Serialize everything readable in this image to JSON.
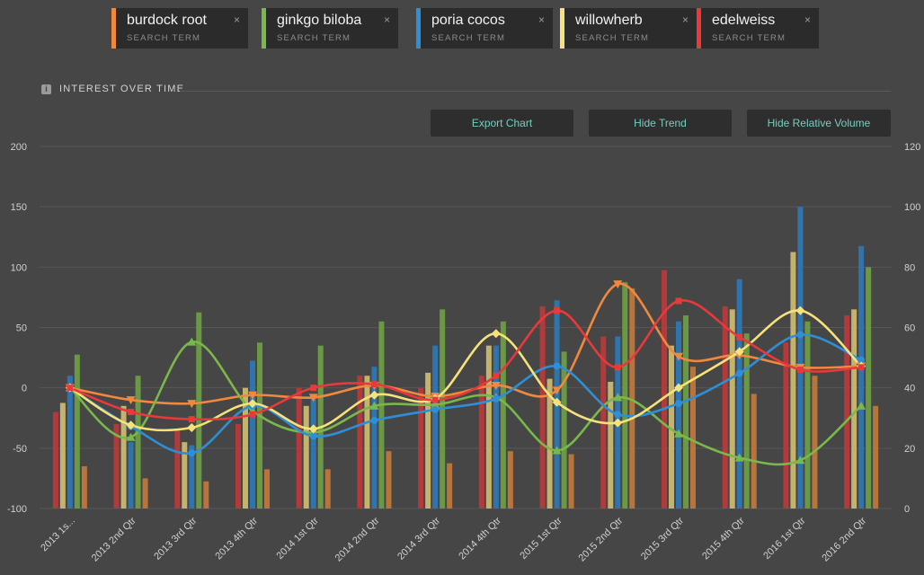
{
  "search_terms": [
    {
      "name": "burdock root",
      "label": "SEARCH TERM",
      "color": "#f0883e"
    },
    {
      "name": "ginkgo biloba",
      "label": "SEARCH TERM",
      "color": "#79b84a"
    },
    {
      "name": "poria cocos",
      "label": "SEARCH TERM",
      "color": "#2e8fd6"
    },
    {
      "name": "willowherb",
      "label": "SEARCH TERM",
      "color": "#f6e27a"
    },
    {
      "name": "edelweiss",
      "label": "SEARCH TERM",
      "color": "#e8393b"
    }
  ],
  "close_glyph": "×",
  "section": {
    "title": "INTEREST OVER TIME",
    "icon": "info-icon",
    "icon_glyph": "i"
  },
  "buttons": {
    "export": "Export Chart",
    "trend": "Hide Trend",
    "volume": "Hide Relative Volume"
  },
  "chart_data": {
    "type": "bar+line",
    "categories": [
      "2013 1s...",
      "2013 2nd Qtr",
      "2013 3rd Qtr",
      "2013 4th Qtr",
      "2014 1st Qtr",
      "2014 2nd Qtr",
      "2014 3rd Qtr",
      "2014 4th Qtr",
      "2015 1st Qtr",
      "2015 2nd Qtr",
      "2015 3rd Qtr",
      "2015 4th Qtr",
      "2016 1st Qtr",
      "2016 2nd Qtr"
    ],
    "y_left": {
      "min": -100,
      "max": 200,
      "ticks": [
        -100,
        -50,
        0,
        50,
        100,
        150,
        200
      ]
    },
    "y_right": {
      "min": 0,
      "max": 120,
      "ticks": [
        0,
        20,
        40,
        60,
        80,
        100,
        120
      ]
    },
    "bar_order": [
      "edelweiss",
      "willowherb",
      "poria cocos",
      "ginkgo biloba",
      "burdock root"
    ],
    "bars": [
      {
        "name": "edelweiss",
        "color": "#b33a3a",
        "values": [
          32,
          28,
          26,
          28,
          40,
          44,
          40,
          44,
          67,
          57,
          79,
          67,
          55,
          64
        ]
      },
      {
        "name": "willowherb",
        "color": "#c4b36c",
        "values": [
          35,
          34,
          22,
          40,
          34,
          44,
          45,
          54,
          43,
          42,
          54,
          66,
          85,
          66
        ]
      },
      {
        "name": "poria cocos",
        "color": "#2f74ad",
        "values": [
          44,
          22,
          21,
          49,
          38,
          47,
          54,
          54,
          69,
          57,
          62,
          76,
          100,
          87
        ]
      },
      {
        "name": "ginkgo biloba",
        "color": "#6b9845",
        "values": [
          51,
          44,
          65,
          55,
          54,
          62,
          66,
          62,
          52,
          75,
          64,
          58,
          62,
          80
        ]
      },
      {
        "name": "burdock root",
        "color": "#b8753b",
        "values": [
          14,
          10,
          9,
          13,
          13,
          19,
          15,
          19,
          18,
          73,
          47,
          38,
          44,
          34
        ]
      }
    ],
    "trend_lines": [
      {
        "name": "burdock root",
        "color": "#f0883e",
        "marker": "triangle-down",
        "values": [
          0,
          -10,
          -13,
          -6,
          -8,
          2,
          -7,
          2,
          -2,
          86,
          26,
          27,
          17,
          18
        ]
      },
      {
        "name": "ginkgo biloba",
        "color": "#79b84a",
        "marker": "triangle-up",
        "values": [
          0,
          -41,
          38,
          -19,
          -37,
          -15,
          -14,
          -8,
          -52,
          -8,
          -38,
          -58,
          -60,
          -15
        ]
      },
      {
        "name": "poria cocos",
        "color": "#2e8fd6",
        "marker": "circle",
        "values": [
          0,
          -32,
          -54,
          -15,
          -40,
          -27,
          -18,
          -9,
          18,
          -22,
          -13,
          12,
          44,
          23
        ]
      },
      {
        "name": "willowherb",
        "color": "#f6e27a",
        "marker": "diamond",
        "values": [
          0,
          -31,
          -33,
          -13,
          -34,
          -6,
          -9,
          45,
          -12,
          -29,
          0,
          30,
          64,
          18
        ]
      },
      {
        "name": "edelweiss",
        "color": "#e8393b",
        "marker": "square",
        "values": [
          0,
          -20,
          -26,
          -22,
          0,
          3,
          -10,
          10,
          64,
          17,
          72,
          42,
          15,
          17
        ]
      }
    ]
  }
}
